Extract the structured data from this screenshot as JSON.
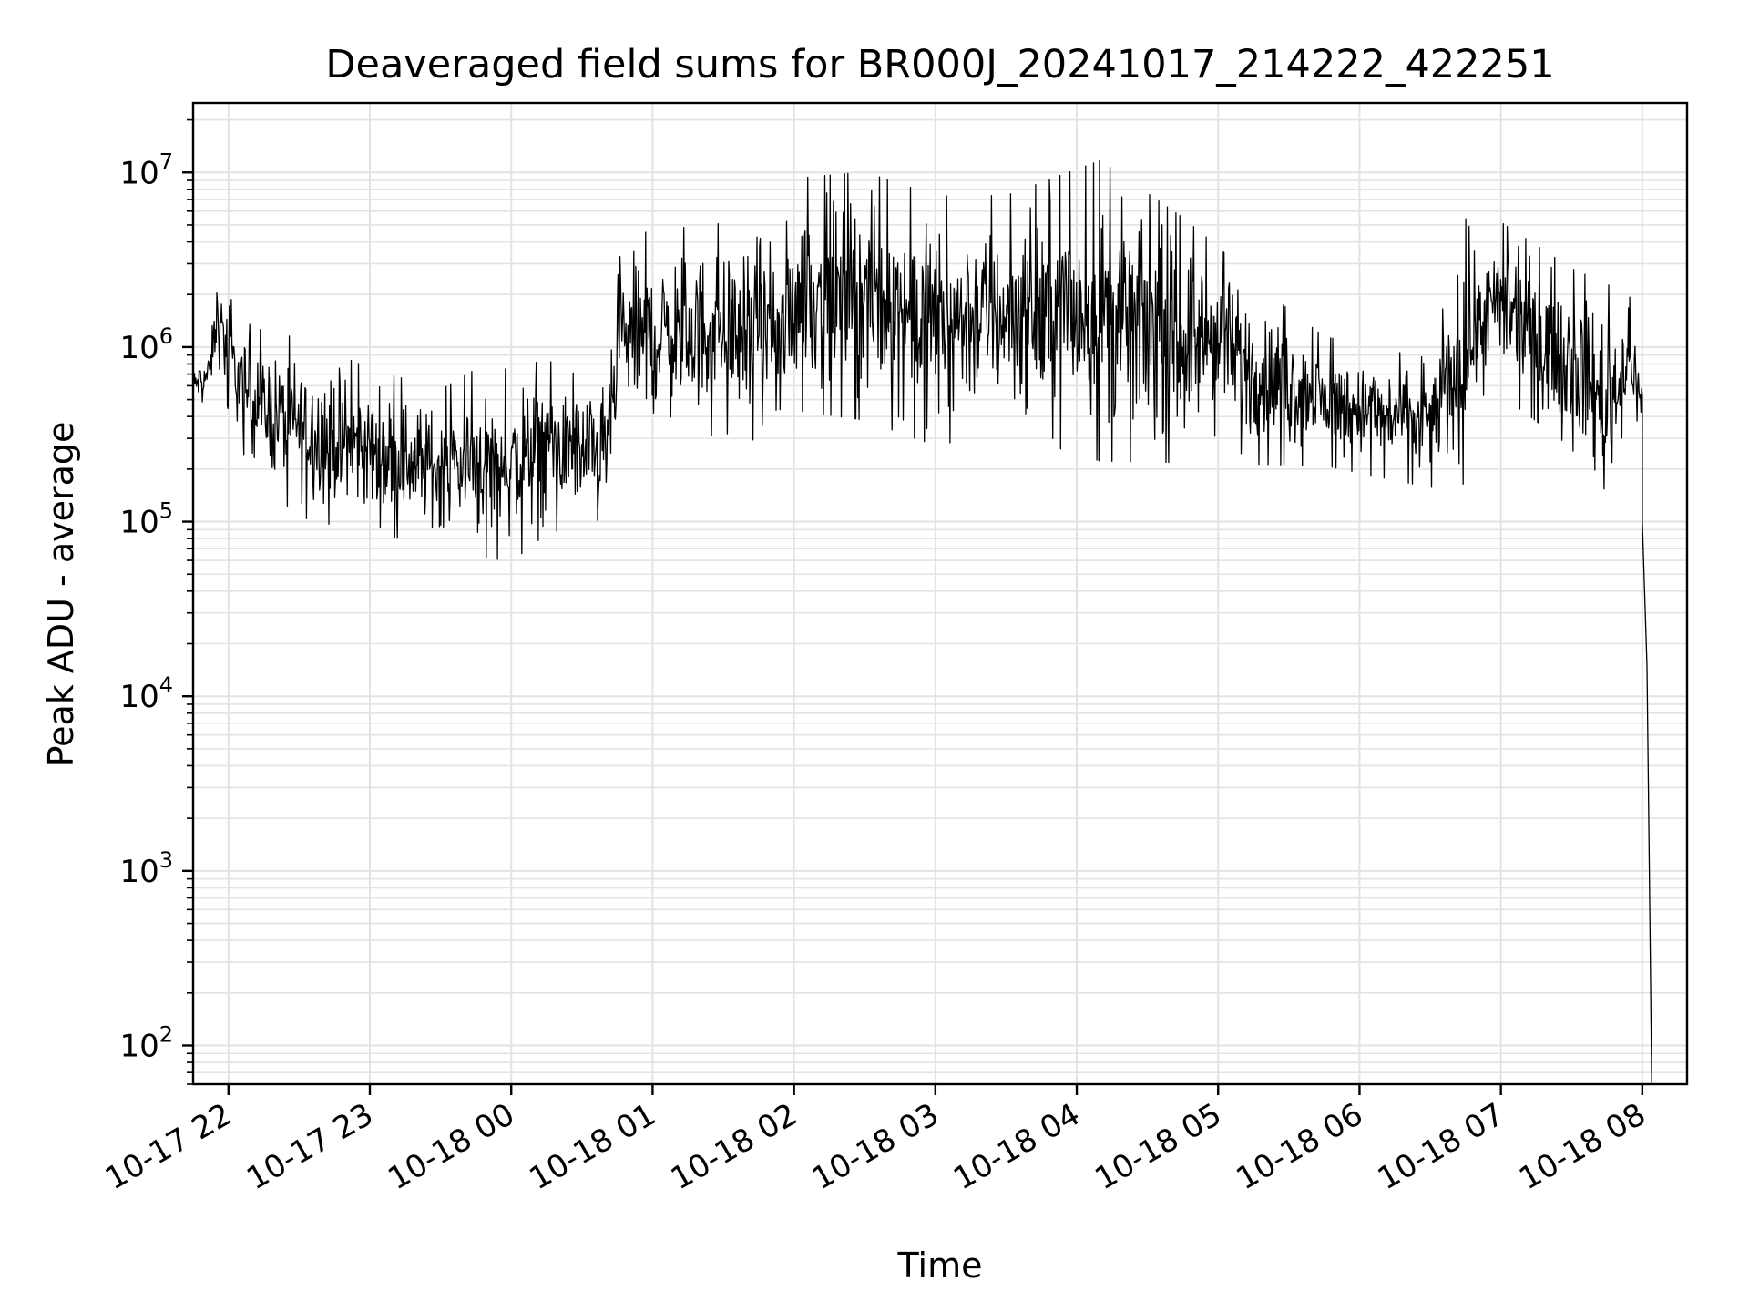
{
  "chart_data": {
    "type": "line",
    "title": "Deaveraged field sums for BR000J_20241017_214222_422251",
    "xlabel": "Time",
    "ylabel": "Peak ADU - average",
    "yscale": "log",
    "ylim": [
      60,
      25000000
    ],
    "xlim": [
      "2024-10-17 21:45",
      "2024-10-18 08:19"
    ],
    "grid": "on (major and minor)",
    "line_color": "#000000",
    "x_ticks": [
      {
        "label": "10-17 22",
        "value": "2024-10-17 22:00"
      },
      {
        "label": "10-17 23",
        "value": "2024-10-17 23:00"
      },
      {
        "label": "10-18 00",
        "value": "2024-10-18 00:00"
      },
      {
        "label": "10-18 01",
        "value": "2024-10-18 01:00"
      },
      {
        "label": "10-18 02",
        "value": "2024-10-18 02:00"
      },
      {
        "label": "10-18 03",
        "value": "2024-10-18 03:00"
      },
      {
        "label": "10-18 04",
        "value": "2024-10-18 04:00"
      },
      {
        "label": "10-18 05",
        "value": "2024-10-18 05:00"
      },
      {
        "label": "10-18 06",
        "value": "2024-10-18 06:00"
      },
      {
        "label": "10-18 07",
        "value": "2024-10-18 07:00"
      },
      {
        "label": "10-18 08",
        "value": "2024-10-18 08:00"
      }
    ],
    "y_ticks": [
      {
        "base": "10",
        "exp": "2",
        "value": 100
      },
      {
        "base": "10",
        "exp": "3",
        "value": 1000
      },
      {
        "base": "10",
        "exp": "4",
        "value": 10000
      },
      {
        "base": "10",
        "exp": "5",
        "value": 100000
      },
      {
        "base": "10",
        "exp": "6",
        "value": 1000000
      },
      {
        "base": "10",
        "exp": "7",
        "value": 10000000
      }
    ],
    "series": [
      {
        "envelope_points": [
          {
            "x": "2024-10-17 21:45",
            "low": 450000,
            "high": 800000
          },
          {
            "x": "2024-10-17 21:52",
            "low": 500000,
            "high": 1000000
          },
          {
            "x": "2024-10-17 21:55",
            "low": 700000,
            "high": 3000000
          },
          {
            "x": "2024-10-17 22:05",
            "low": 250000,
            "high": 1500000
          },
          {
            "x": "2024-10-17 22:15",
            "low": 150000,
            "high": 1300000
          },
          {
            "x": "2024-10-17 22:30",
            "low": 100000,
            "high": 1200000
          },
          {
            "x": "2024-10-17 23:00",
            "low": 80000,
            "high": 800000
          },
          {
            "x": "2024-10-17 23:30",
            "low": 70000,
            "high": 600000
          },
          {
            "x": "2024-10-17 23:45",
            "low": 60000,
            "high": 800000
          },
          {
            "x": "2024-10-18 00:00",
            "low": 55000,
            "high": 800000
          },
          {
            "x": "2024-10-18 00:15",
            "low": 80000,
            "high": 900000
          },
          {
            "x": "2024-10-18 00:40",
            "low": 100000,
            "high": 600000
          },
          {
            "x": "2024-10-18 00:47",
            "low": 300000,
            "high": 4500000
          },
          {
            "x": "2024-10-18 01:00",
            "low": 250000,
            "high": 5000000
          },
          {
            "x": "2024-10-18 01:30",
            "low": 300000,
            "high": 5500000
          },
          {
            "x": "2024-10-18 01:55",
            "low": 250000,
            "high": 4000000
          },
          {
            "x": "2024-10-18 02:00",
            "low": 400000,
            "high": 10000000
          },
          {
            "x": "2024-10-18 02:30",
            "low": 350000,
            "high": 11000000
          },
          {
            "x": "2024-10-18 03:00",
            "low": 250000,
            "high": 8000000
          },
          {
            "x": "2024-10-18 03:30",
            "low": 300000,
            "high": 8000000
          },
          {
            "x": "2024-10-18 04:10",
            "low": 200000,
            "high": 13000000
          },
          {
            "x": "2024-10-18 04:45",
            "low": 200000,
            "high": 6000000
          },
          {
            "x": "2024-10-18 05:00",
            "low": 300000,
            "high": 4000000
          },
          {
            "x": "2024-10-18 05:15",
            "low": 200000,
            "high": 2500000
          },
          {
            "x": "2024-10-18 05:45",
            "low": 200000,
            "high": 1200000
          },
          {
            "x": "2024-10-18 06:30",
            "low": 150000,
            "high": 900000
          },
          {
            "x": "2024-10-18 06:45",
            "low": 150000,
            "high": 6000000
          },
          {
            "x": "2024-10-18 06:50",
            "low": 500000,
            "high": 4000000
          },
          {
            "x": "2024-10-18 07:00",
            "low": 500000,
            "high": 5500000
          },
          {
            "x": "2024-10-18 07:30",
            "low": 250000,
            "high": 3000000
          },
          {
            "x": "2024-10-18 07:45",
            "low": 80000,
            "high": 2500000
          },
          {
            "x": "2024-10-18 07:55",
            "low": 400000,
            "high": 2000000
          },
          {
            "x": "2024-10-18 08:00",
            "low": 250000,
            "high": 800000
          }
        ],
        "tail_points": [
          {
            "x": "2024-10-18 08:00",
            "y": 100000
          },
          {
            "x": "2024-10-18 08:02",
            "y": 15000
          },
          {
            "x": "2024-10-18 08:03",
            "y": 1000
          },
          {
            "x": "2024-10-18 08:04",
            "y": 60
          }
        ]
      }
    ]
  }
}
